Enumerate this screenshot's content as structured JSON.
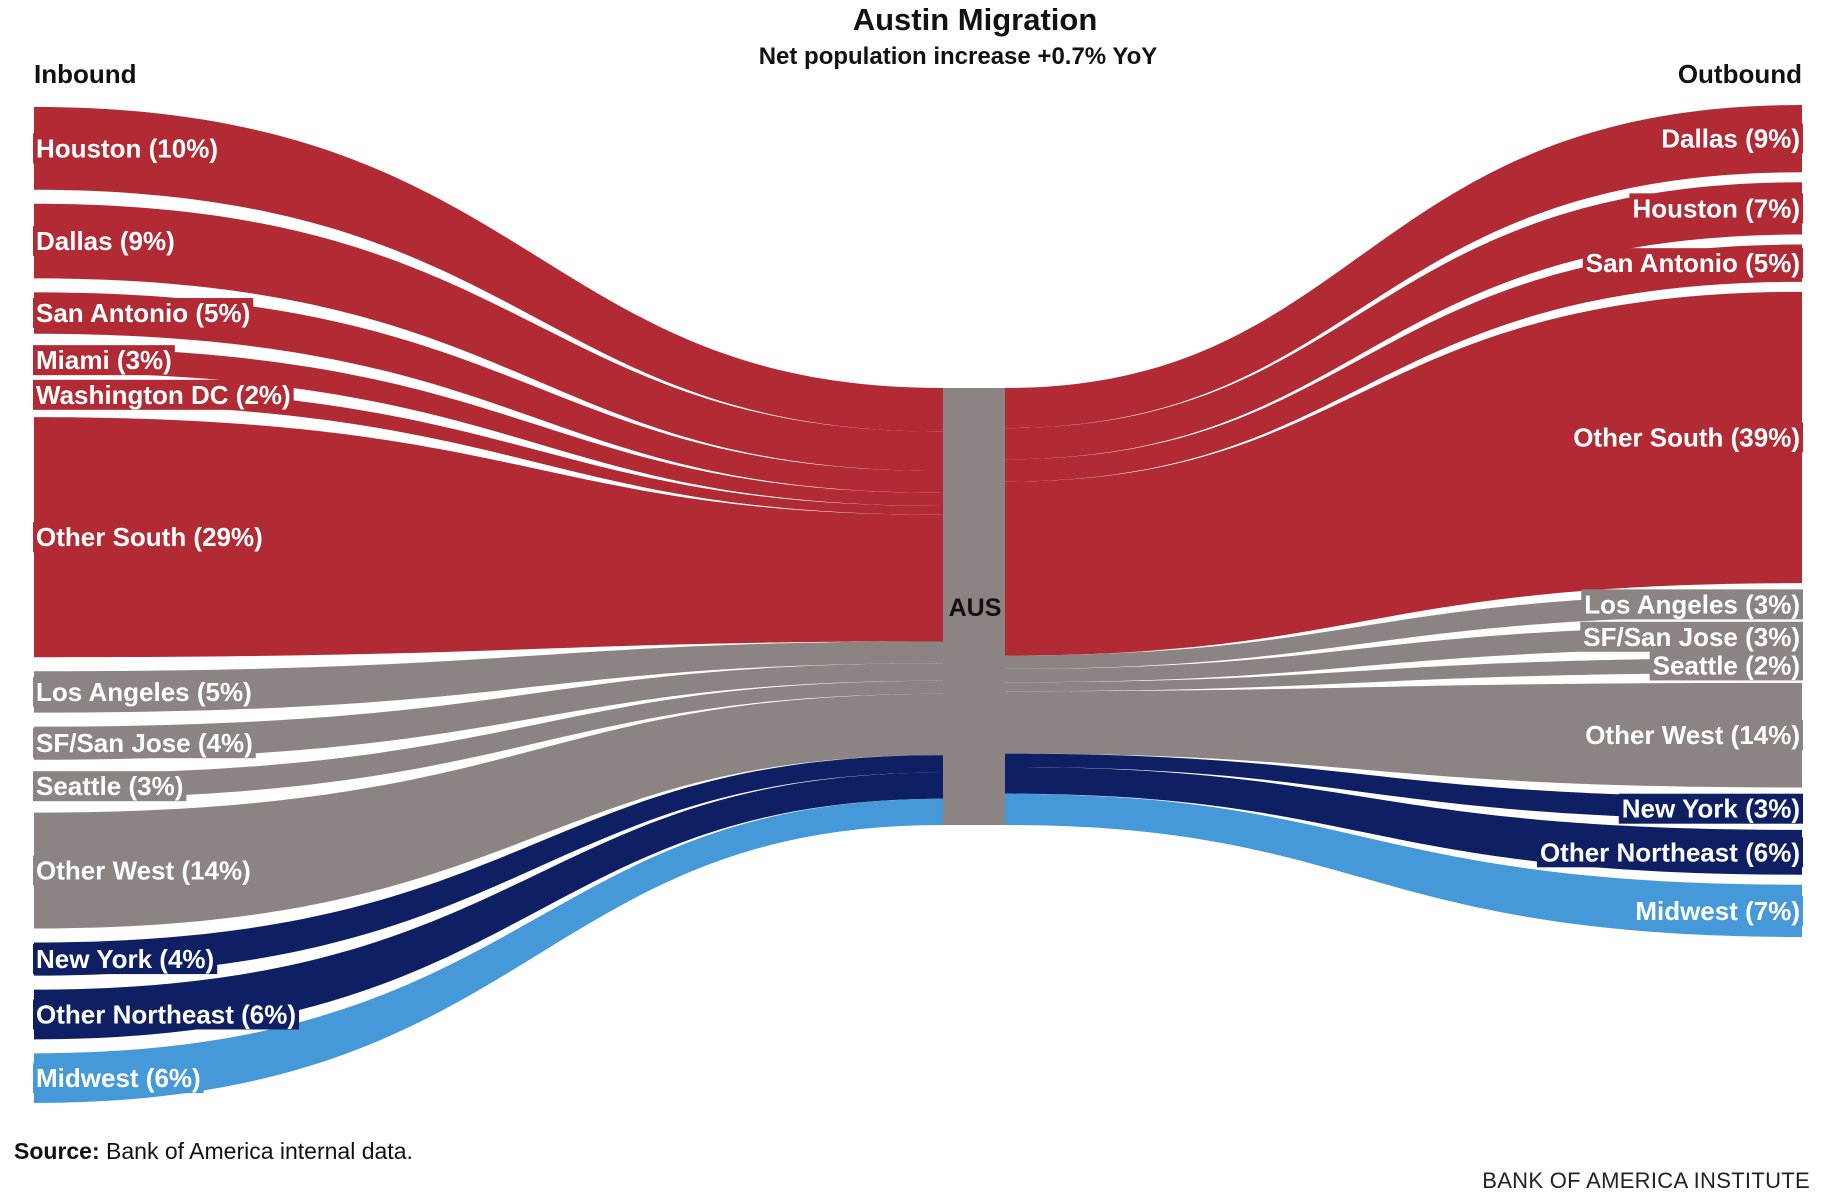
{
  "title": "Austin Migration",
  "subtitle": "Net population increase +0.7% YoY",
  "inbound_header": "Inbound",
  "outbound_header": "Outbound",
  "source_label": "Source:",
  "source_text": " Bank of America internal data.",
  "brand": "BANK OF AMERICA INSTITUTE",
  "colors": {
    "south": "#b22a34",
    "west": "#8c8482",
    "northeast": "#0f1f63",
    "midwest": "#4599d8",
    "node": "#8c8482"
  },
  "chart_data": {
    "type": "sankey",
    "node": "AUS",
    "inbound": [
      {
        "name": "Houston",
        "label": "Houston (10%)",
        "value": 10,
        "region": "south"
      },
      {
        "name": "Dallas",
        "label": "Dallas (9%)",
        "value": 9,
        "region": "south"
      },
      {
        "name": "San Antonio",
        "label": "San Antonio (5%)",
        "value": 5,
        "region": "south"
      },
      {
        "name": "Miami",
        "label": "Miami (3%)",
        "value": 3,
        "region": "south"
      },
      {
        "name": "Washington DC",
        "label": "Washington DC (2%)",
        "value": 2,
        "region": "south"
      },
      {
        "name": "Other South",
        "label": "Other South (29%)",
        "value": 29,
        "region": "south"
      },
      {
        "name": "Los Angeles",
        "label": "Los Angeles (5%)",
        "value": 5,
        "region": "west"
      },
      {
        "name": "SF/San Jose",
        "label": "SF/San Jose (4%)",
        "value": 4,
        "region": "west"
      },
      {
        "name": "Seattle",
        "label": "Seattle (3%)",
        "value": 3,
        "region": "west"
      },
      {
        "name": "Other West",
        "label": "Other West (14%)",
        "value": 14,
        "region": "west"
      },
      {
        "name": "New York",
        "label": "New York (4%)",
        "value": 4,
        "region": "northeast"
      },
      {
        "name": "Other Northeast",
        "label": "Other Northeast (6%)",
        "value": 6,
        "region": "northeast"
      },
      {
        "name": "Midwest",
        "label": "Midwest (6%)",
        "value": 6,
        "region": "midwest"
      }
    ],
    "outbound": [
      {
        "name": "Dallas",
        "label": "Dallas (9%)",
        "value": 9,
        "region": "south"
      },
      {
        "name": "Houston",
        "label": "Houston (7%)",
        "value": 7,
        "region": "south"
      },
      {
        "name": "San Antonio",
        "label": "San Antonio (5%)",
        "value": 5,
        "region": "south"
      },
      {
        "name": "Other South",
        "label": "Other South (39%)",
        "value": 39,
        "region": "south"
      },
      {
        "name": "Los Angeles",
        "label": "Los Angeles (3%)",
        "value": 3,
        "region": "west"
      },
      {
        "name": "SF/San Jose",
        "label": "SF/San Jose (3%)",
        "value": 3,
        "region": "west"
      },
      {
        "name": "Seattle",
        "label": "Seattle (2%)",
        "value": 2,
        "region": "west"
      },
      {
        "name": "Other West",
        "label": "Other West (14%)",
        "value": 14,
        "region": "west"
      },
      {
        "name": "New York",
        "label": "New York (3%)",
        "value": 3,
        "region": "northeast"
      },
      {
        "name": "Other Northeast",
        "label": "Other Northeast (6%)",
        "value": 6,
        "region": "northeast"
      },
      {
        "name": "Midwest",
        "label": "Midwest (7%)",
        "value": 7,
        "region": "midwest"
      }
    ]
  }
}
